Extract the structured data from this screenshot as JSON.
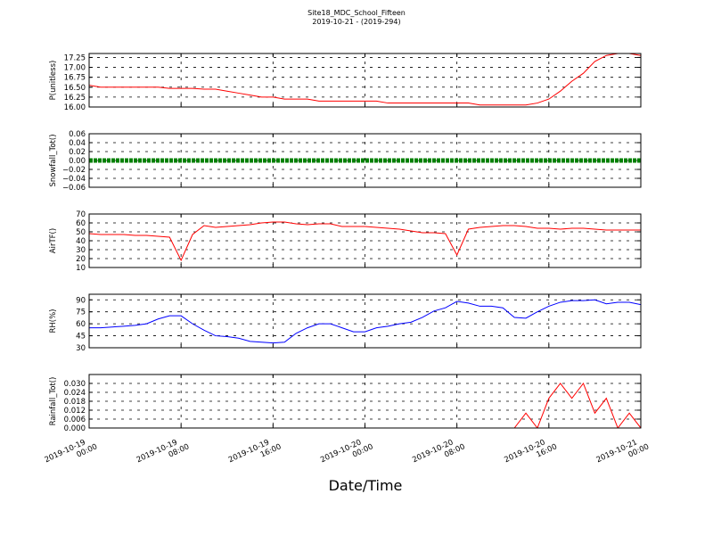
{
  "title": "Site18_MDC_School_Fifteen",
  "subtitle": "2019-10-21 - (2019-294)",
  "xlabel": "Date/Time",
  "x": [
    "2019-10-19 00:00",
    "2019-10-19 01:00",
    "2019-10-19 02:00",
    "2019-10-19 03:00",
    "2019-10-19 04:00",
    "2019-10-19 05:00",
    "2019-10-19 06:00",
    "2019-10-19 07:00",
    "2019-10-19 08:00",
    "2019-10-19 09:00",
    "2019-10-19 10:00",
    "2019-10-19 11:00",
    "2019-10-19 12:00",
    "2019-10-19 13:00",
    "2019-10-19 14:00",
    "2019-10-19 15:00",
    "2019-10-19 16:00",
    "2019-10-19 17:00",
    "2019-10-19 18:00",
    "2019-10-19 19:00",
    "2019-10-19 20:00",
    "2019-10-19 21:00",
    "2019-10-19 22:00",
    "2019-10-19 23:00",
    "2019-10-20 00:00",
    "2019-10-20 01:00",
    "2019-10-20 02:00",
    "2019-10-20 03:00",
    "2019-10-20 04:00",
    "2019-10-20 05:00",
    "2019-10-20 06:00",
    "2019-10-20 07:00",
    "2019-10-20 08:00",
    "2019-10-20 09:00",
    "2019-10-20 10:00",
    "2019-10-20 11:00",
    "2019-10-20 12:00",
    "2019-10-20 13:00",
    "2019-10-20 14:00",
    "2019-10-20 15:00",
    "2019-10-20 16:00",
    "2019-10-20 17:00",
    "2019-10-20 18:00",
    "2019-10-20 19:00",
    "2019-10-20 20:00",
    "2019-10-20 21:00",
    "2019-10-20 22:00",
    "2019-10-20 23:00",
    "2019-10-21 00:00"
  ],
  "xlim": [
    "2019-10-19 00:00",
    "2019-10-21 00:00"
  ],
  "xticks": [
    "2019-10-19 00:00",
    "2019-10-19 08:00",
    "2019-10-19 16:00",
    "2019-10-20 00:00",
    "2019-10-20 08:00",
    "2019-10-20 16:00",
    "2019-10-21 00:00"
  ],
  "chart_data": [
    {
      "type": "line",
      "ylabel": "P(unitless)",
      "color": "#ff0000",
      "grid": true,
      "ylim": [
        16.0,
        17.35
      ],
      "yticks": [
        {
          "value": 16.0,
          "label": "16.00"
        },
        {
          "value": 16.25,
          "label": "16.25"
        },
        {
          "value": 16.5,
          "label": "16.50"
        },
        {
          "value": 16.75,
          "label": "16.75"
        },
        {
          "value": 17.0,
          "label": "17.00"
        },
        {
          "value": 17.25,
          "label": "17.25"
        }
      ],
      "values": [
        16.55,
        16.5,
        16.5,
        16.5,
        16.5,
        16.5,
        16.5,
        16.47,
        16.47,
        16.47,
        16.45,
        16.45,
        16.4,
        16.35,
        16.3,
        16.25,
        16.25,
        16.2,
        16.2,
        16.2,
        16.15,
        16.15,
        16.15,
        16.15,
        16.15,
        16.15,
        16.1,
        16.1,
        16.1,
        16.1,
        16.1,
        16.1,
        16.1,
        16.1,
        16.05,
        16.05,
        16.05,
        16.05,
        16.05,
        16.1,
        16.2,
        16.4,
        16.65,
        16.85,
        17.15,
        17.3,
        17.35,
        17.35,
        17.3
      ]
    },
    {
      "type": "line",
      "style": "markers",
      "ylabel": "Snowfall_Tot()",
      "color": "#008000",
      "grid": true,
      "ylim": [
        -0.06,
        0.06
      ],
      "yticks": [
        {
          "value": -0.06,
          "label": "−0.06"
        },
        {
          "value": -0.04,
          "label": "−0.04"
        },
        {
          "value": -0.02,
          "label": "−0.02"
        },
        {
          "value": 0,
          "label": "0.00"
        },
        {
          "value": 0.02,
          "label": "0.02"
        },
        {
          "value": 0.04,
          "label": "0.04"
        },
        {
          "value": 0.06,
          "label": "0.06"
        }
      ],
      "values": [
        0,
        0,
        0,
        0,
        0,
        0,
        0,
        0,
        0,
        0,
        0,
        0,
        0,
        0,
        0,
        0,
        0,
        0,
        0,
        0,
        0,
        0,
        0,
        0,
        0,
        0,
        0,
        0,
        0,
        0,
        0,
        0,
        0,
        0,
        0,
        0,
        0,
        0,
        0,
        0,
        0,
        0,
        0,
        0,
        0,
        0,
        0,
        0,
        0
      ]
    },
    {
      "type": "line",
      "ylabel": "AirTF()",
      "color": "#ff0000",
      "grid": true,
      "ylim": [
        10,
        70
      ],
      "yticks": [
        10,
        20,
        30,
        40,
        50,
        60,
        70
      ],
      "values": [
        48,
        47,
        47,
        47,
        46,
        46,
        45,
        44,
        18,
        47,
        57,
        55,
        56,
        57,
        58,
        60,
        61,
        61,
        59,
        58,
        59,
        59,
        56,
        56,
        56,
        55,
        54,
        53,
        51,
        49,
        49,
        48,
        24,
        53,
        55,
        56,
        57,
        57,
        56,
        54,
        54,
        53,
        54,
        54,
        53,
        52,
        52,
        52,
        52
      ]
    },
    {
      "type": "line",
      "ylabel": "RH(%)",
      "color": "#0000ff",
      "grid": true,
      "ylim": [
        30,
        97
      ],
      "yticks": [
        30,
        45,
        60,
        75,
        90
      ],
      "values": [
        55,
        55,
        56,
        57,
        58,
        60,
        66,
        70,
        70,
        60,
        52,
        45,
        44,
        42,
        38,
        37,
        36,
        37,
        48,
        55,
        60,
        60,
        55,
        50,
        50,
        55,
        57,
        60,
        62,
        68,
        76,
        80,
        88,
        86,
        82,
        82,
        80,
        68,
        67,
        75,
        82,
        87,
        89,
        89,
        90,
        85,
        87,
        87,
        84
      ]
    },
    {
      "type": "line",
      "ylabel": "Rainfall_Tot()",
      "color": "#ff0000",
      "grid": true,
      "ylim": [
        0,
        0.036
      ],
      "yticks": [
        {
          "value": 0,
          "label": "0.000"
        },
        {
          "value": 0.006,
          "label": "0.006"
        },
        {
          "value": 0.012,
          "label": "0.012"
        },
        {
          "value": 0.018,
          "label": "0.018"
        },
        {
          "value": 0.024,
          "label": "0.024"
        },
        {
          "value": 0.03,
          "label": "0.030"
        }
      ],
      "values": [
        0,
        0,
        0,
        0,
        0,
        0,
        0,
        0,
        0,
        0,
        0,
        0,
        0,
        0,
        0,
        0,
        0,
        0,
        0,
        0,
        0,
        0,
        0,
        0,
        0,
        0,
        0,
        0,
        0,
        0,
        0,
        0,
        0,
        0,
        0,
        0,
        0,
        0,
        0.01,
        0,
        0.02,
        0.03,
        0.02,
        0.03,
        0.01,
        0.02,
        0,
        0.01,
        0
      ]
    }
  ]
}
